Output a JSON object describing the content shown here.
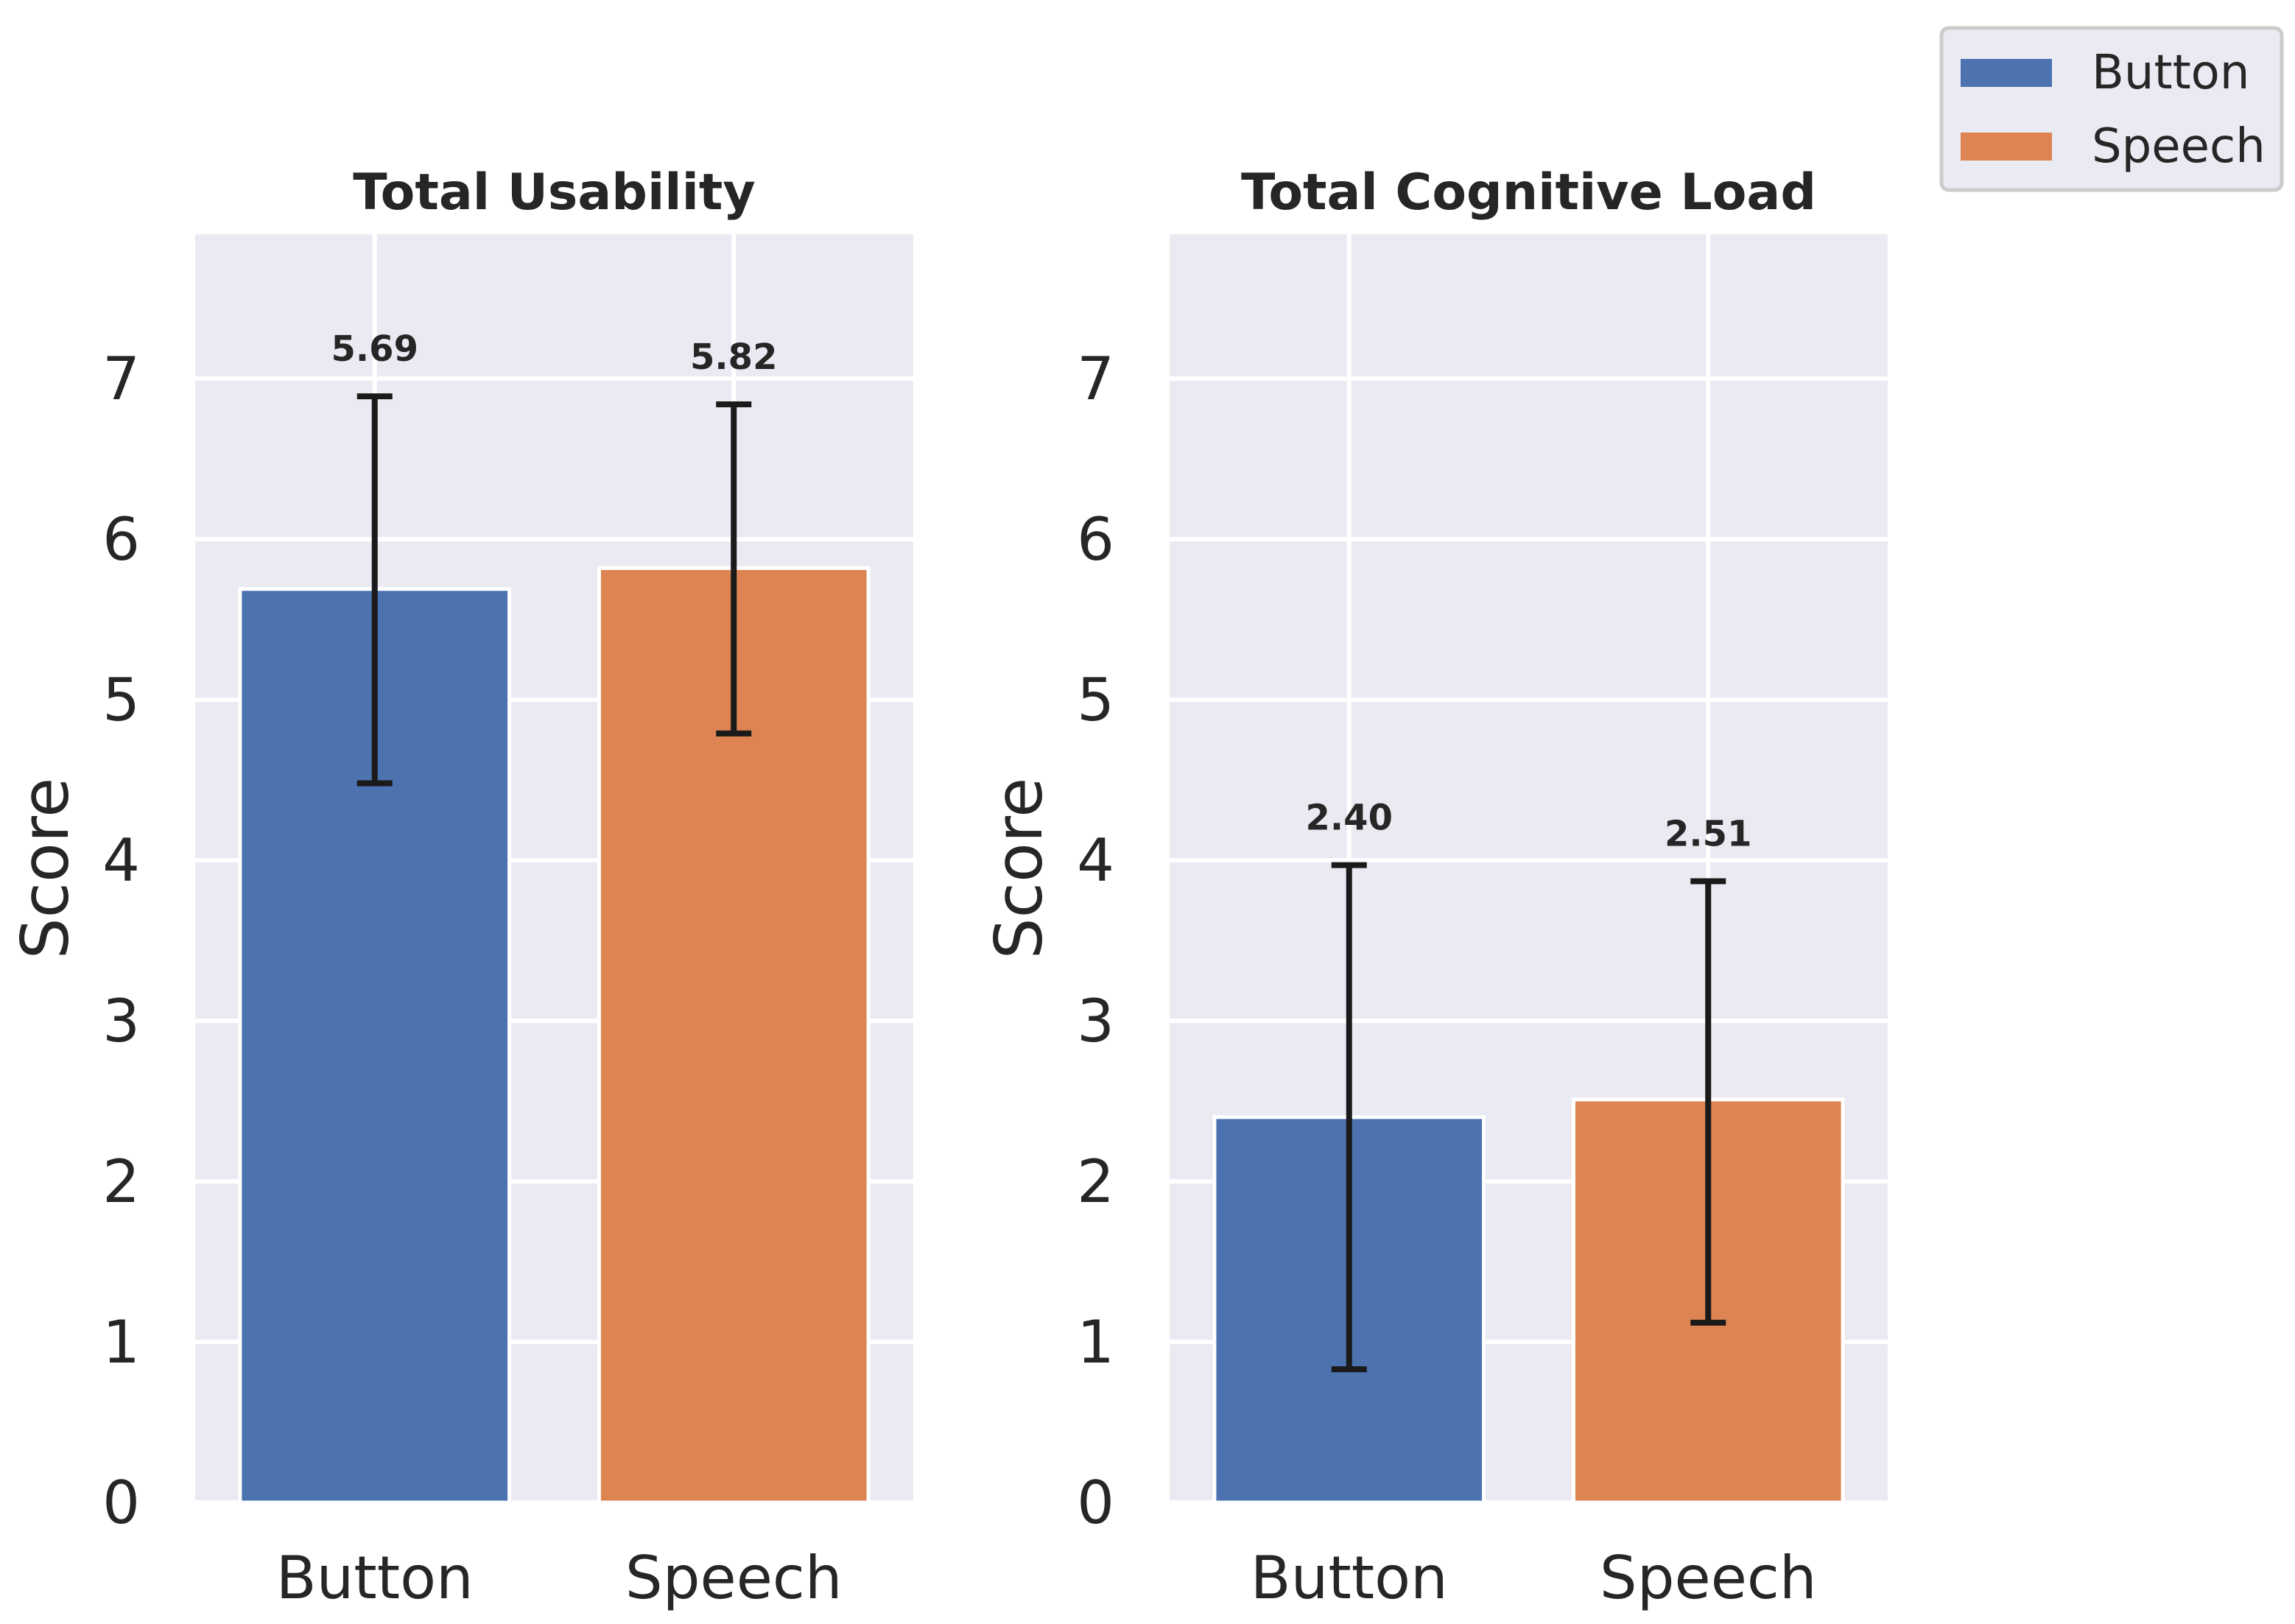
{
  "chart_data": [
    {
      "type": "bar",
      "title": "Total Usability",
      "categories": [
        "Button",
        "Speech"
      ],
      "values": [
        5.69,
        5.82
      ],
      "error_low": [
        4.48,
        4.79
      ],
      "error_high": [
        6.89,
        6.84
      ],
      "value_labels": [
        "5.69",
        "5.82"
      ],
      "xlabel": "",
      "ylabel": "Score",
      "ylim": [
        0,
        7.9
      ],
      "yticks": [
        0,
        1,
        2,
        3,
        4,
        5,
        6,
        7
      ],
      "ytick_labels": [
        "0",
        "1",
        "2",
        "3",
        "4",
        "5",
        "6",
        "7"
      ],
      "colors": [
        "#4c72b0",
        "#dd8452"
      ],
      "grid": true
    },
    {
      "type": "bar",
      "title": "Total Cognitive Load",
      "categories": [
        "Button",
        "Speech"
      ],
      "values": [
        2.4,
        2.51
      ],
      "error_low": [
        0.83,
        1.12
      ],
      "error_high": [
        3.97,
        3.87
      ],
      "value_labels": [
        "2.40",
        "2.51"
      ],
      "xlabel": "",
      "ylabel": "Score",
      "ylim": [
        0,
        7.9
      ],
      "yticks": [
        0,
        1,
        2,
        3,
        4,
        5,
        6,
        7
      ],
      "ytick_labels": [
        "0",
        "1",
        "2",
        "3",
        "4",
        "5",
        "6",
        "7"
      ],
      "colors": [
        "#4c72b0",
        "#dd8452"
      ],
      "grid": true
    }
  ],
  "legend": {
    "placement": "top-right",
    "entries": [
      {
        "label": "Button",
        "color": "#4c72b0"
      },
      {
        "label": "Speech",
        "color": "#dd8452"
      }
    ]
  }
}
